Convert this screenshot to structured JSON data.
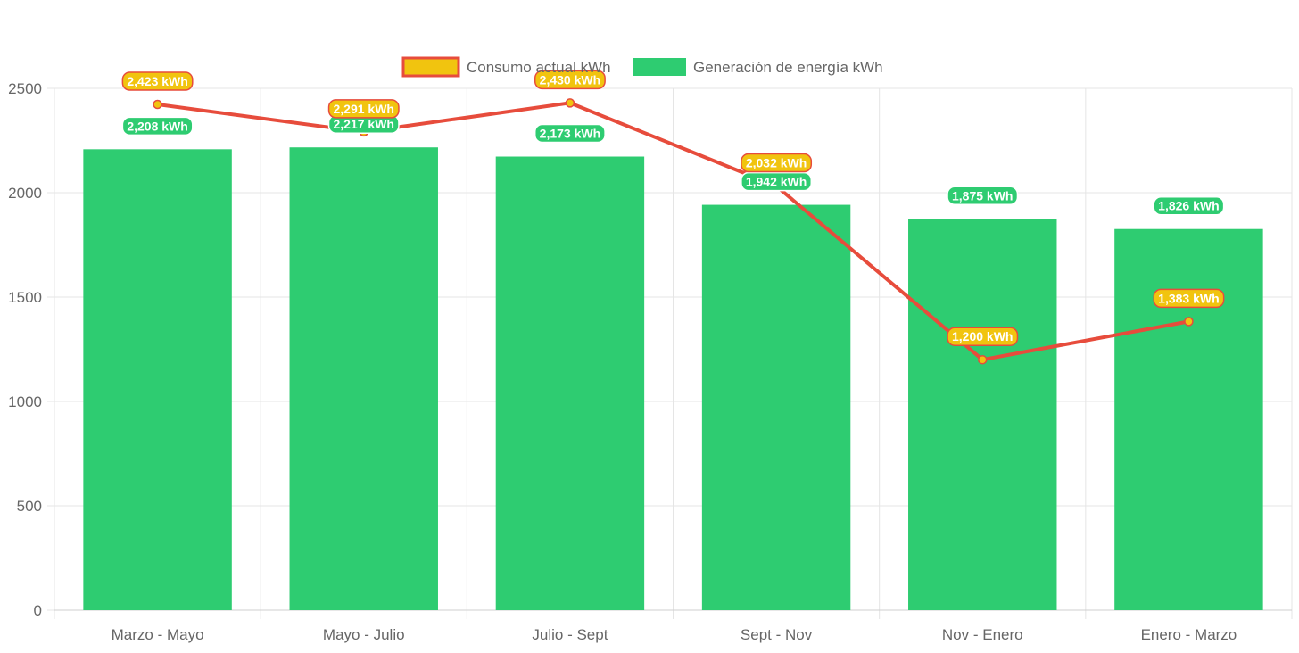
{
  "colors": {
    "bar_fill": "#2ecc71",
    "line_stroke": "#e74c3c",
    "point_fill": "#f1c40f",
    "grid": "#e5e5e5",
    "tick_text": "#666666"
  },
  "chart_data": {
    "type": "bar",
    "categories": [
      "Marzo - Mayo",
      "Mayo - Julio",
      "Julio - Sept",
      "Sept - Nov",
      "Nov - Enero",
      "Enero - Marzo"
    ],
    "series": [
      {
        "name": "Generación de energía kWh",
        "type": "bar",
        "values": [
          2208,
          2217,
          2173,
          1942,
          1875,
          1826
        ],
        "labels": [
          "2,208 kWh",
          "2,217 kWh",
          "2,173 kWh",
          "1,942 kWh",
          "1,875 kWh",
          "1,826 kWh"
        ]
      },
      {
        "name": "Consumo actual kWh",
        "type": "line",
        "values": [
          2423,
          2291,
          2430,
          2032,
          1200,
          1383
        ],
        "labels": [
          "2,423 kWh",
          "2,291 kWh",
          "2,430 kWh",
          "2,032 kWh",
          "1,200 kWh",
          "1,383 kWh"
        ]
      }
    ],
    "ylim": [
      0,
      2500
    ],
    "yticks": [
      0,
      500,
      1000,
      1500,
      2000,
      2500
    ],
    "grid": true,
    "legend_position": "top-center",
    "title": "",
    "xlabel": "",
    "ylabel": ""
  }
}
